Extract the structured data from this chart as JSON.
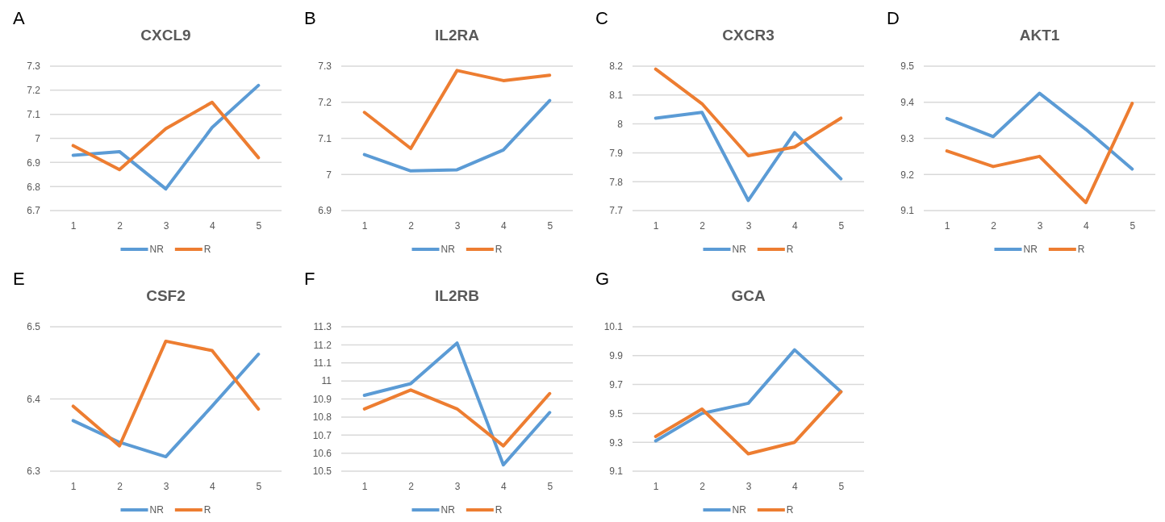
{
  "chart_data": [
    {
      "type": "line",
      "title": "CXCL9",
      "annotations": [
        "A"
      ],
      "categories": [
        "1",
        "2",
        "3",
        "4",
        "5"
      ],
      "ylim": [
        6.7,
        7.3
      ],
      "yticks": [
        6.7,
        6.8,
        6.9,
        7,
        7.1,
        7.2,
        7.3
      ],
      "grid": "y",
      "legend": "bottom",
      "marker": "none",
      "series": [
        {
          "name": "NR",
          "color": "#5b9bd5",
          "values": [
            6.93,
            6.945,
            6.79,
            7.045,
            7.22
          ]
        },
        {
          "name": "R",
          "color": "#ed7d31",
          "values": [
            6.97,
            6.87,
            7.04,
            7.15,
            6.92
          ]
        }
      ]
    },
    {
      "type": "line",
      "title": "IL2RA",
      "annotations": [
        "B"
      ],
      "categories": [
        "1",
        "2",
        "3",
        "4",
        "5"
      ],
      "ylim": [
        6.9,
        7.3
      ],
      "yticks": [
        6.9,
        7,
        7.1,
        7.2,
        7.3
      ],
      "grid": "y",
      "legend": "bottom",
      "marker": "none",
      "series": [
        {
          "name": "NR",
          "color": "#5b9bd5",
          "values": [
            7.055,
            7.01,
            7.013,
            7.068,
            7.205
          ]
        },
        {
          "name": "R",
          "color": "#ed7d31",
          "values": [
            7.172,
            7.072,
            7.288,
            7.26,
            7.275
          ]
        }
      ]
    },
    {
      "type": "line",
      "title": "CXCR3",
      "annotations": [
        "C"
      ],
      "categories": [
        "1",
        "2",
        "3",
        "4",
        "5"
      ],
      "ylim": [
        7.7,
        8.2
      ],
      "yticks": [
        7.7,
        7.8,
        7.9,
        8,
        8.1,
        8.2
      ],
      "grid": "y",
      "legend": "bottom",
      "marker": "none",
      "series": [
        {
          "name": "NR",
          "color": "#5b9bd5",
          "values": [
            8.02,
            8.04,
            7.735,
            7.97,
            7.81
          ]
        },
        {
          "name": "R",
          "color": "#ed7d31",
          "values": [
            8.19,
            8.07,
            7.89,
            7.92,
            8.02
          ]
        }
      ]
    },
    {
      "type": "line",
      "title": "AKT1",
      "annotations": [
        "D"
      ],
      "categories": [
        "1",
        "2",
        "3",
        "4",
        "5"
      ],
      "ylim": [
        9.1,
        9.5
      ],
      "yticks": [
        9.1,
        9.2,
        9.3,
        9.4,
        9.5
      ],
      "grid": "y",
      "legend": "bottom",
      "marker": "none",
      "series": [
        {
          "name": "NR",
          "color": "#5b9bd5",
          "values": [
            9.355,
            9.305,
            9.425,
            9.325,
            9.215
          ]
        },
        {
          "name": "R",
          "color": "#ed7d31",
          "values": [
            9.265,
            9.222,
            9.25,
            9.122,
            9.397
          ]
        }
      ]
    },
    {
      "type": "line",
      "title": "CSF2",
      "annotations": [
        "E"
      ],
      "categories": [
        "1",
        "2",
        "3",
        "4",
        "5"
      ],
      "ylim": [
        6.3,
        6.5
      ],
      "yticks": [
        6.3,
        6.4,
        6.5
      ],
      "grid": "y",
      "legend": "bottom",
      "marker": "none",
      "series": [
        {
          "name": "NR",
          "color": "#5b9bd5",
          "values": [
            6.37,
            6.34,
            6.32,
            6.39,
            6.462
          ]
        },
        {
          "name": "R",
          "color": "#ed7d31",
          "values": [
            6.39,
            6.335,
            6.48,
            6.467,
            6.386
          ]
        }
      ]
    },
    {
      "type": "line",
      "title": "IL2RB",
      "annotations": [
        "F"
      ],
      "categories": [
        "1",
        "2",
        "3",
        "4",
        "5"
      ],
      "ylim": [
        10.5,
        11.3
      ],
      "yticks": [
        10.5,
        10.6,
        10.7,
        10.8,
        10.9,
        11,
        11.1,
        11.2,
        11.3
      ],
      "grid": "y",
      "legend": "bottom",
      "marker": "none",
      "series": [
        {
          "name": "NR",
          "color": "#5b9bd5",
          "values": [
            10.92,
            10.985,
            11.21,
            10.535,
            10.825
          ]
        },
        {
          "name": "R",
          "color": "#ed7d31",
          "values": [
            10.845,
            10.95,
            10.845,
            10.64,
            10.93
          ]
        }
      ]
    },
    {
      "type": "line",
      "title": "GCA",
      "annotations": [
        "G"
      ],
      "categories": [
        "1",
        "2",
        "3",
        "4",
        "5"
      ],
      "ylim": [
        9.1,
        10.1
      ],
      "yticks": [
        9.1,
        9.3,
        9.5,
        9.7,
        9.9,
        10.1
      ],
      "grid": "y",
      "legend": "bottom",
      "marker": "none",
      "series": [
        {
          "name": "NR",
          "color": "#5b9bd5",
          "values": [
            9.31,
            9.5,
            9.57,
            9.94,
            9.65
          ]
        },
        {
          "name": "R",
          "color": "#ed7d31",
          "values": [
            9.34,
            9.53,
            9.22,
            9.3,
            9.65
          ]
        }
      ]
    }
  ]
}
